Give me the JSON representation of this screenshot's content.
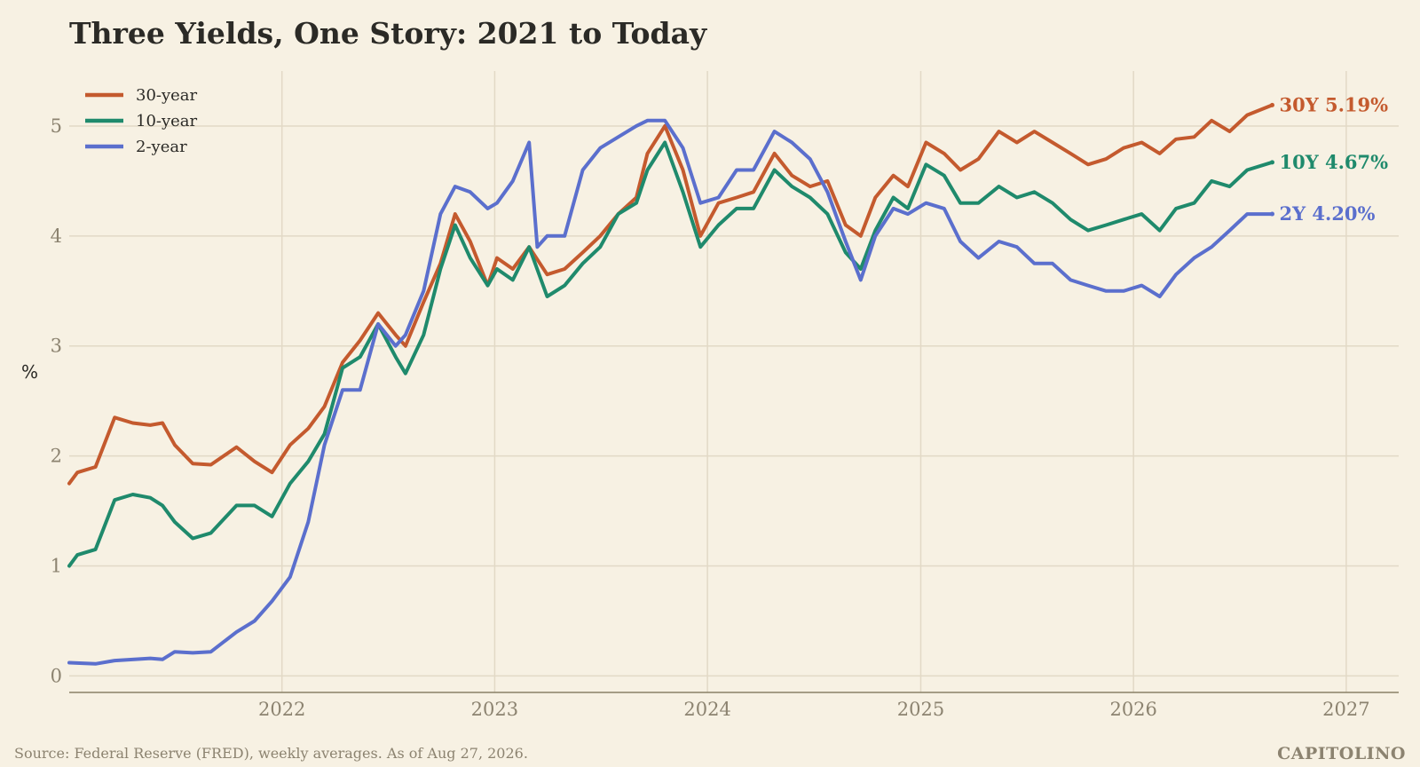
{
  "chart_data": {
    "type": "line",
    "title": "Three Yields, One Story: 2021 to Today",
    "ylabel": "%",
    "xlabel": "",
    "x_ticks": [
      "2022",
      "2023",
      "2024",
      "2025",
      "2026",
      "2027"
    ],
    "y_ticks": [
      "0",
      "1",
      "2",
      "3",
      "4",
      "5"
    ],
    "xlim": [
      "2021-01-01",
      "2027-04-01"
    ],
    "ylim": [
      -0.15,
      5.5
    ],
    "grid": true,
    "legend_position": "top-left",
    "source": "Source: Federal Reserve (FRED), weekly averages. As of Aug 27, 2026.",
    "brand": "CAPITOLINO",
    "series": [
      {
        "name": "30-year",
        "color": "#c45a2e",
        "end_label": "30Y 5.19%",
        "points": [
          [
            "2021-01-01",
            1.75
          ],
          [
            "2021-01-15",
            1.85
          ],
          [
            "2021-02-15",
            1.9
          ],
          [
            "2021-03-20",
            2.35
          ],
          [
            "2021-04-20",
            2.3
          ],
          [
            "2021-05-20",
            2.28
          ],
          [
            "2021-06-10",
            2.3
          ],
          [
            "2021-07-01",
            2.1
          ],
          [
            "2021-08-01",
            1.93
          ],
          [
            "2021-09-01",
            1.92
          ],
          [
            "2021-10-15",
            2.08
          ],
          [
            "2021-11-15",
            1.95
          ],
          [
            "2021-12-15",
            1.85
          ],
          [
            "2022-01-15",
            2.1
          ],
          [
            "2022-02-15",
            2.25
          ],
          [
            "2022-03-15",
            2.45
          ],
          [
            "2022-04-15",
            2.85
          ],
          [
            "2022-05-15",
            3.05
          ],
          [
            "2022-06-15",
            3.3
          ],
          [
            "2022-07-15",
            3.1
          ],
          [
            "2022-08-01",
            3.0
          ],
          [
            "2022-09-01",
            3.4
          ],
          [
            "2022-09-30",
            3.75
          ],
          [
            "2022-10-25",
            4.2
          ],
          [
            "2022-11-20",
            3.95
          ],
          [
            "2022-12-20",
            3.55
          ],
          [
            "2023-01-05",
            3.8
          ],
          [
            "2023-02-01",
            3.7
          ],
          [
            "2023-03-01",
            3.9
          ],
          [
            "2023-04-01",
            3.65
          ],
          [
            "2023-05-01",
            3.7
          ],
          [
            "2023-06-01",
            3.85
          ],
          [
            "2023-07-01",
            4.0
          ],
          [
            "2023-08-01",
            4.2
          ],
          [
            "2023-09-01",
            4.35
          ],
          [
            "2023-09-20",
            4.75
          ],
          [
            "2023-10-20",
            5.0
          ],
          [
            "2023-11-20",
            4.6
          ],
          [
            "2023-12-20",
            4.0
          ],
          [
            "2024-01-20",
            4.3
          ],
          [
            "2024-02-20",
            4.35
          ],
          [
            "2024-03-20",
            4.4
          ],
          [
            "2024-04-25",
            4.75
          ],
          [
            "2024-05-25",
            4.55
          ],
          [
            "2024-06-25",
            4.45
          ],
          [
            "2024-07-25",
            4.5
          ],
          [
            "2024-08-25",
            4.1
          ],
          [
            "2024-09-20",
            4.0
          ],
          [
            "2024-10-15",
            4.35
          ],
          [
            "2024-11-15",
            4.55
          ],
          [
            "2024-12-10",
            4.45
          ],
          [
            "2025-01-10",
            4.85
          ],
          [
            "2025-02-10",
            4.75
          ],
          [
            "2025-03-10",
            4.6
          ],
          [
            "2025-04-10",
            4.7
          ],
          [
            "2025-05-15",
            4.95
          ],
          [
            "2025-06-15",
            4.85
          ],
          [
            "2025-07-15",
            4.95
          ],
          [
            "2025-08-15",
            4.85
          ],
          [
            "2025-09-15",
            4.75
          ],
          [
            "2025-10-15",
            4.65
          ],
          [
            "2025-11-15",
            4.7
          ],
          [
            "2025-12-15",
            4.8
          ],
          [
            "2026-01-15",
            4.85
          ],
          [
            "2026-02-15",
            4.75
          ],
          [
            "2026-03-15",
            4.88
          ],
          [
            "2026-04-15",
            4.9
          ],
          [
            "2026-05-15",
            5.05
          ],
          [
            "2026-06-15",
            4.95
          ],
          [
            "2026-07-15",
            5.1
          ],
          [
            "2026-08-27",
            5.19
          ]
        ]
      },
      {
        "name": "10-year",
        "color": "#1f8a6c",
        "end_label": "10Y 4.67%",
        "points": [
          [
            "2021-01-01",
            1.0
          ],
          [
            "2021-01-15",
            1.1
          ],
          [
            "2021-02-15",
            1.15
          ],
          [
            "2021-03-20",
            1.6
          ],
          [
            "2021-04-20",
            1.65
          ],
          [
            "2021-05-20",
            1.62
          ],
          [
            "2021-06-10",
            1.55
          ],
          [
            "2021-07-01",
            1.4
          ],
          [
            "2021-08-01",
            1.25
          ],
          [
            "2021-09-01",
            1.3
          ],
          [
            "2021-10-15",
            1.55
          ],
          [
            "2021-11-15",
            1.55
          ],
          [
            "2021-12-15",
            1.45
          ],
          [
            "2022-01-15",
            1.75
          ],
          [
            "2022-02-15",
            1.95
          ],
          [
            "2022-03-15",
            2.2
          ],
          [
            "2022-04-15",
            2.8
          ],
          [
            "2022-05-15",
            2.9
          ],
          [
            "2022-06-15",
            3.2
          ],
          [
            "2022-07-15",
            2.9
          ],
          [
            "2022-08-01",
            2.75
          ],
          [
            "2022-09-01",
            3.1
          ],
          [
            "2022-09-30",
            3.7
          ],
          [
            "2022-10-25",
            4.1
          ],
          [
            "2022-11-20",
            3.8
          ],
          [
            "2022-12-20",
            3.55
          ],
          [
            "2023-01-05",
            3.7
          ],
          [
            "2023-02-01",
            3.6
          ],
          [
            "2023-03-01",
            3.9
          ],
          [
            "2023-04-01",
            3.45
          ],
          [
            "2023-05-01",
            3.55
          ],
          [
            "2023-06-01",
            3.75
          ],
          [
            "2023-07-01",
            3.9
          ],
          [
            "2023-08-01",
            4.2
          ],
          [
            "2023-09-01",
            4.3
          ],
          [
            "2023-09-20",
            4.6
          ],
          [
            "2023-10-20",
            4.85
          ],
          [
            "2023-11-20",
            4.4
          ],
          [
            "2023-12-20",
            3.9
          ],
          [
            "2024-01-20",
            4.1
          ],
          [
            "2024-02-20",
            4.25
          ],
          [
            "2024-03-20",
            4.25
          ],
          [
            "2024-04-25",
            4.6
          ],
          [
            "2024-05-25",
            4.45
          ],
          [
            "2024-06-25",
            4.35
          ],
          [
            "2024-07-25",
            4.2
          ],
          [
            "2024-08-25",
            3.85
          ],
          [
            "2024-09-20",
            3.7
          ],
          [
            "2024-10-15",
            4.05
          ],
          [
            "2024-11-15",
            4.35
          ],
          [
            "2024-12-10",
            4.25
          ],
          [
            "2025-01-10",
            4.65
          ],
          [
            "2025-02-10",
            4.55
          ],
          [
            "2025-03-10",
            4.3
          ],
          [
            "2025-04-10",
            4.3
          ],
          [
            "2025-05-15",
            4.45
          ],
          [
            "2025-06-15",
            4.35
          ],
          [
            "2025-07-15",
            4.4
          ],
          [
            "2025-08-15",
            4.3
          ],
          [
            "2025-09-15",
            4.15
          ],
          [
            "2025-10-15",
            4.05
          ],
          [
            "2025-11-15",
            4.1
          ],
          [
            "2025-12-15",
            4.15
          ],
          [
            "2026-01-15",
            4.2
          ],
          [
            "2026-02-15",
            4.05
          ],
          [
            "2026-03-15",
            4.25
          ],
          [
            "2026-04-15",
            4.3
          ],
          [
            "2026-05-15",
            4.5
          ],
          [
            "2026-06-15",
            4.45
          ],
          [
            "2026-07-15",
            4.6
          ],
          [
            "2026-08-27",
            4.67
          ]
        ]
      },
      {
        "name": "2-year",
        "color": "#5b6fcd",
        "end_label": "2Y 4.20%",
        "points": [
          [
            "2021-01-01",
            0.12
          ],
          [
            "2021-02-15",
            0.11
          ],
          [
            "2021-03-20",
            0.14
          ],
          [
            "2021-05-20",
            0.16
          ],
          [
            "2021-06-10",
            0.15
          ],
          [
            "2021-07-01",
            0.22
          ],
          [
            "2021-08-01",
            0.21
          ],
          [
            "2021-09-01",
            0.22
          ],
          [
            "2021-10-15",
            0.4
          ],
          [
            "2021-11-15",
            0.5
          ],
          [
            "2021-12-15",
            0.68
          ],
          [
            "2022-01-15",
            0.9
          ],
          [
            "2022-02-15",
            1.4
          ],
          [
            "2022-03-15",
            2.1
          ],
          [
            "2022-04-15",
            2.6
          ],
          [
            "2022-05-15",
            2.6
          ],
          [
            "2022-06-15",
            3.2
          ],
          [
            "2022-07-15",
            3.0
          ],
          [
            "2022-08-01",
            3.1
          ],
          [
            "2022-09-01",
            3.5
          ],
          [
            "2022-09-30",
            4.2
          ],
          [
            "2022-10-25",
            4.45
          ],
          [
            "2022-11-20",
            4.4
          ],
          [
            "2022-12-20",
            4.25
          ],
          [
            "2023-01-05",
            4.3
          ],
          [
            "2023-02-01",
            4.5
          ],
          [
            "2023-03-01",
            4.85
          ],
          [
            "2023-03-15",
            3.9
          ],
          [
            "2023-04-01",
            4.0
          ],
          [
            "2023-05-01",
            4.0
          ],
          [
            "2023-06-01",
            4.6
          ],
          [
            "2023-07-01",
            4.8
          ],
          [
            "2023-08-01",
            4.9
          ],
          [
            "2023-09-01",
            5.0
          ],
          [
            "2023-09-20",
            5.05
          ],
          [
            "2023-10-20",
            5.05
          ],
          [
            "2023-11-20",
            4.8
          ],
          [
            "2023-12-20",
            4.3
          ],
          [
            "2024-01-20",
            4.35
          ],
          [
            "2024-02-20",
            4.6
          ],
          [
            "2024-03-20",
            4.6
          ],
          [
            "2024-04-25",
            4.95
          ],
          [
            "2024-05-25",
            4.85
          ],
          [
            "2024-06-25",
            4.7
          ],
          [
            "2024-07-25",
            4.4
          ],
          [
            "2024-08-25",
            3.95
          ],
          [
            "2024-09-20",
            3.6
          ],
          [
            "2024-10-15",
            4.0
          ],
          [
            "2024-11-15",
            4.25
          ],
          [
            "2024-12-10",
            4.2
          ],
          [
            "2025-01-10",
            4.3
          ],
          [
            "2025-02-10",
            4.25
          ],
          [
            "2025-03-10",
            3.95
          ],
          [
            "2025-04-10",
            3.8
          ],
          [
            "2025-05-15",
            3.95
          ],
          [
            "2025-06-15",
            3.9
          ],
          [
            "2025-07-15",
            3.75
          ],
          [
            "2025-08-15",
            3.75
          ],
          [
            "2025-09-15",
            3.6
          ],
          [
            "2025-10-15",
            3.55
          ],
          [
            "2025-11-15",
            3.5
          ],
          [
            "2025-12-15",
            3.5
          ],
          [
            "2026-01-15",
            3.55
          ],
          [
            "2026-02-15",
            3.45
          ],
          [
            "2026-03-15",
            3.65
          ],
          [
            "2026-04-15",
            3.8
          ],
          [
            "2026-05-15",
            3.9
          ],
          [
            "2026-06-15",
            4.05
          ],
          [
            "2026-07-15",
            4.2
          ],
          [
            "2026-08-27",
            4.2
          ]
        ]
      }
    ]
  }
}
